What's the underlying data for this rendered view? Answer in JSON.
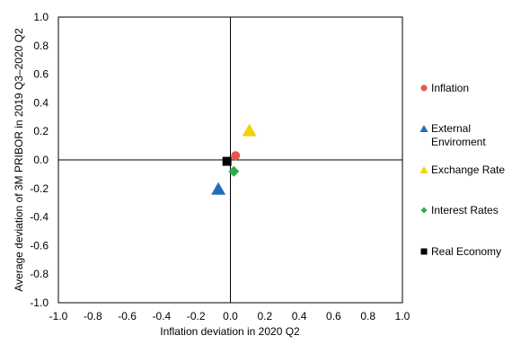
{
  "chart_data": {
    "type": "scatter",
    "title": "",
    "xlabel": "Inflation deviation in 2020 Q2",
    "ylabel": "Average deviation of 3M PRIBOR in 2019 Q3–2020 Q2",
    "xlim": [
      -1.0,
      1.0
    ],
    "ylim": [
      -1.0,
      1.0
    ],
    "x_ticks": [
      "-1.0",
      "-0.8",
      "-0.6",
      "-0.4",
      "-0.2",
      "0.0",
      "0.2",
      "0.4",
      "0.6",
      "0.8",
      "1.0"
    ],
    "y_ticks": [
      "1.0",
      "0.8",
      "0.6",
      "0.4",
      "0.2",
      "0.0",
      "-0.2",
      "-0.4",
      "-0.6",
      "-0.8",
      "-1.0"
    ],
    "grid": false,
    "legend_position": "right",
    "series": [
      {
        "name": "Inflation",
        "marker": "circle",
        "color": "#E8584A",
        "points": [
          {
            "x": 0.03,
            "y": 0.03
          }
        ]
      },
      {
        "name": "External\nEnviroment",
        "marker": "triangle",
        "color": "#1F6EB5",
        "points": [
          {
            "x": -0.07,
            "y": -0.2
          }
        ]
      },
      {
        "name": "Exchange Rate",
        "marker": "triangle",
        "color": "#F2D200",
        "points": [
          {
            "x": 0.11,
            "y": 0.21
          }
        ]
      },
      {
        "name": "Interest Rates",
        "marker": "diamond",
        "color": "#2EAA4A",
        "points": [
          {
            "x": 0.02,
            "y": -0.08
          }
        ]
      },
      {
        "name": "Real Economy",
        "marker": "square",
        "color": "#000000",
        "points": [
          {
            "x": -0.02,
            "y": -0.01
          }
        ]
      }
    ]
  }
}
